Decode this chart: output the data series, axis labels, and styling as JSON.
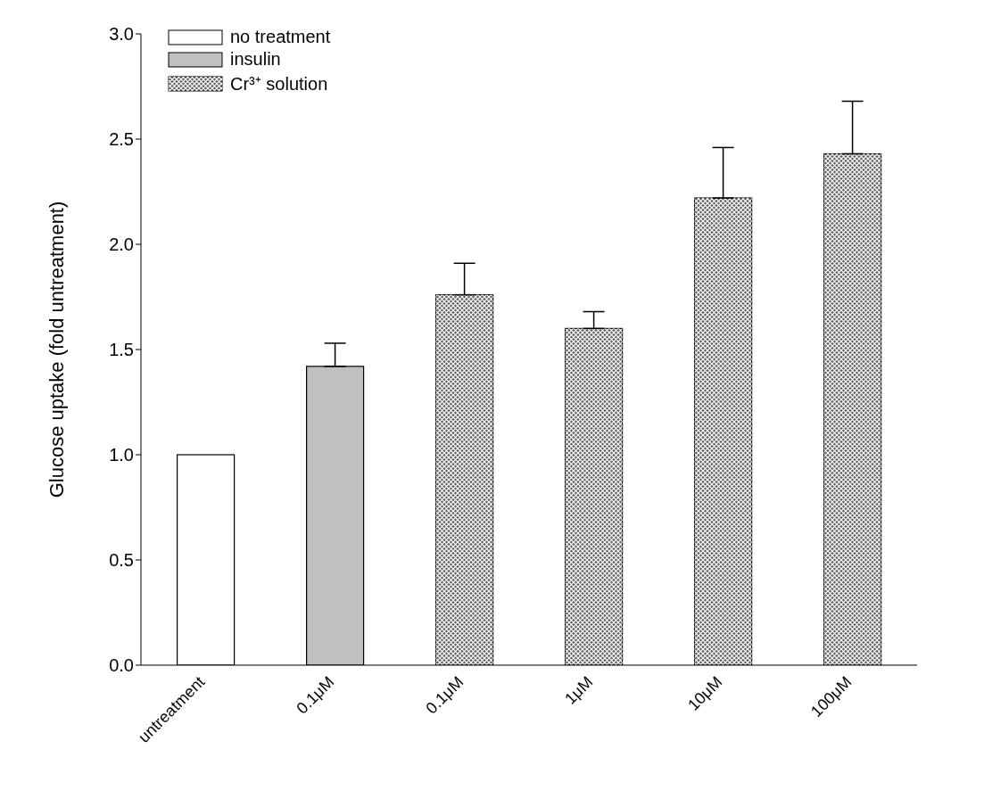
{
  "chart_data": {
    "type": "bar",
    "ylabel": "Glucose uptake (fold untreatment)",
    "categories": [
      "untreatment",
      "0.1μM",
      "0.1μM",
      "1μM",
      "10μM",
      "100μM"
    ],
    "series": [
      {
        "name": "no treatment",
        "color": "#ffffff",
        "values": [
          1.0,
          null,
          null,
          null,
          null,
          null
        ]
      },
      {
        "name": "insulin",
        "color": "#c0c0c0",
        "values": [
          null,
          1.42,
          null,
          null,
          null,
          null
        ],
        "errors": [
          null,
          [
            1.42,
            1.53
          ],
          null,
          null,
          null,
          null
        ]
      },
      {
        "name": "Cr³⁺ solution",
        "color": "#606060",
        "values": [
          null,
          null,
          1.76,
          1.6,
          2.22,
          2.43
        ],
        "errors": [
          null,
          null,
          [
            1.76,
            1.91
          ],
          [
            1.6,
            1.68
          ],
          [
            2.22,
            2.46
          ],
          [
            2.43,
            2.68
          ]
        ]
      }
    ],
    "ylim": [
      0,
      3
    ],
    "yticks": [
      {
        "value": 0,
        "label": "0.0"
      },
      0.5,
      {
        "value": 1,
        "label": "1.0"
      },
      1.5,
      {
        "value": 2,
        "label": "2.0"
      },
      2.5,
      {
        "value": 3,
        "label": "3.0"
      }
    ],
    "grid": false,
    "legend": "top left"
  }
}
